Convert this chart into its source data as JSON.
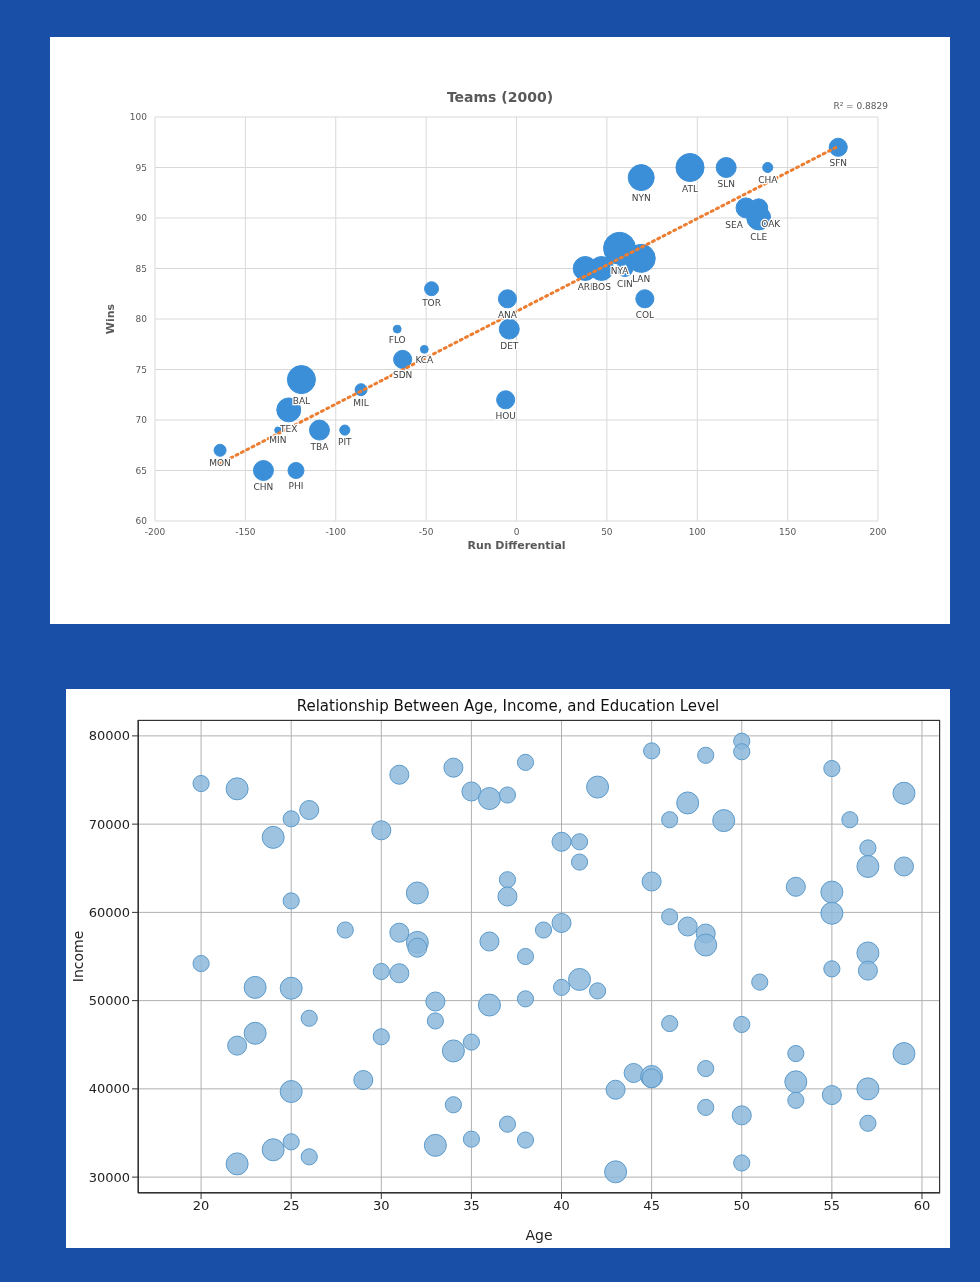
{
  "chart_data": [
    {
      "type": "bubble",
      "title": "Teams (2000)",
      "xlabel": "Run Differential",
      "ylabel": "Wins",
      "xlim": [
        -200,
        200
      ],
      "xticks": [
        -200,
        -150,
        -100,
        -50,
        0,
        50,
        100,
        150,
        200
      ],
      "ylim": [
        60,
        100
      ],
      "yticks": [
        60,
        65,
        70,
        75,
        80,
        85,
        90,
        95,
        100
      ],
      "grid": true,
      "series": [
        {
          "color": "#3a8fd8",
          "x": [
            -164,
            -140,
            -122,
            -132,
            -126,
            -119,
            -109,
            -95,
            -86,
            -63,
            -66,
            -51,
            -47,
            -5,
            -4,
            -6,
            38,
            47,
            57,
            60,
            69,
            71,
            69,
            96,
            116,
            139,
            178,
            127,
            134,
            134
          ],
          "values": [
            67,
            65,
            65,
            69,
            71,
            74,
            69,
            69,
            73,
            76,
            79,
            77,
            83,
            82,
            79,
            72,
            85,
            85,
            87,
            85,
            86,
            82,
            94,
            95,
            95,
            95,
            97,
            91,
            91,
            90
          ],
          "sizes": [
            0.14,
            0.39,
            0.25,
            0.04,
            0.56,
            0.77,
            0.39,
            0.1,
            0.14,
            0.32,
            0.06,
            0.06,
            0.19,
            0.32,
            0.39,
            0.32,
            0.56,
            0.56,
            1,
            0.25,
            0.77,
            0.32,
            0.66,
            0.77,
            0.39,
            0.1,
            0.32,
            0.39,
            0.32,
            0.56
          ]
        },
        {
          "type": "line",
          "color": "#ed7d31",
          "line_style": "dotted",
          "marker": "none",
          "x": [
            -164,
            178
          ],
          "values": [
            65.7,
            97.1
          ]
        }
      ],
      "annotations": [
        "R² = 0.8829",
        {
          "text": "MON",
          "x": -164,
          "y": 67
        },
        {
          "text": "CHN",
          "x": -140,
          "y": 65
        },
        {
          "text": "PHI",
          "x": -122,
          "y": 65
        },
        {
          "text": "MIN",
          "x": -132,
          "y": 69
        },
        {
          "text": "TEX",
          "x": -126,
          "y": 71
        },
        {
          "text": "BAL",
          "x": -119,
          "y": 74
        },
        {
          "text": "TBA",
          "x": -109,
          "y": 69
        },
        {
          "text": "PIT",
          "x": -95,
          "y": 69
        },
        {
          "text": "MIL",
          "x": -86,
          "y": 73
        },
        {
          "text": "SDN",
          "x": -63,
          "y": 76
        },
        {
          "text": "FLO",
          "x": -66,
          "y": 79
        },
        {
          "text": "KCA",
          "x": -51,
          "y": 77
        },
        {
          "text": "TOR",
          "x": -47,
          "y": 83
        },
        {
          "text": "ANA",
          "x": -5,
          "y": 82
        },
        {
          "text": "DET",
          "x": -4,
          "y": 79
        },
        {
          "text": "HOU",
          "x": -6,
          "y": 72
        },
        {
          "text": "ARI",
          "x": 38,
          "y": 85
        },
        {
          "text": "BOS",
          "x": 47,
          "y": 85
        },
        {
          "text": "NYA",
          "x": 57,
          "y": 87
        },
        {
          "text": "CIN",
          "x": 60,
          "y": 85
        },
        {
          "text": "LAN",
          "x": 69,
          "y": 86
        },
        {
          "text": "COL",
          "x": 71,
          "y": 82
        },
        {
          "text": "NYN",
          "x": 69,
          "y": 94
        },
        {
          "text": "ATL",
          "x": 96,
          "y": 95
        },
        {
          "text": "SLN",
          "x": 116,
          "y": 95
        },
        {
          "text": "CHA",
          "x": 139,
          "y": 95
        },
        {
          "text": "SFN",
          "x": 178,
          "y": 97
        },
        {
          "text": "SEA",
          "x": 127,
          "y": 91
        },
        {
          "text": "OAK",
          "x": 134,
          "y": 91
        },
        {
          "text": "CLE",
          "x": 134,
          "y": 90
        }
      ]
    },
    {
      "type": "bubble",
      "title": "Relationship Between Age, Income, and Education Level",
      "xlabel": "Age",
      "ylabel": "Income",
      "xlim": [
        16.5,
        61
      ],
      "xticks": [
        20,
        25,
        30,
        35,
        40,
        45,
        50,
        55,
        60
      ],
      "ylim": [
        28200,
        81800
      ],
      "yticks": [
        30000,
        40000,
        50000,
        60000,
        70000,
        80000
      ],
      "grid": true,
      "series": [
        {
          "color": "#8cb9dc",
          "x": [
            20,
            22,
            26,
            25,
            24,
            30,
            31,
            34,
            35,
            36,
            37,
            37,
            37,
            32,
            25,
            28,
            31,
            32,
            32,
            36,
            20,
            30,
            31,
            23,
            25,
            33,
            36,
            26,
            33,
            23,
            22,
            30,
            34,
            35,
            29,
            25,
            34,
            37,
            35,
            25,
            24,
            26,
            22,
            33,
            38,
            38,
            38,
            38,
            42,
            45,
            48,
            50,
            50,
            55,
            59,
            47,
            46,
            49,
            56,
            40,
            41,
            41,
            57,
            57,
            59,
            45,
            53,
            55,
            55,
            40,
            39,
            46,
            47,
            48,
            48,
            57,
            55,
            57,
            51,
            40,
            41,
            42,
            46,
            50,
            53,
            59,
            44,
            45,
            45,
            48,
            53,
            43,
            55,
            57,
            48,
            53,
            50,
            57,
            43,
            50
          ],
          "values": [
            74600,
            74000,
            71600,
            70600,
            68500,
            69300,
            75600,
            76400,
            73700,
            72900,
            73300,
            63700,
            61800,
            62200,
            61300,
            58000,
            57700,
            56600,
            56000,
            56700,
            54200,
            53300,
            53100,
            51500,
            51400,
            49900,
            49500,
            48000,
            47700,
            46300,
            44900,
            45900,
            44300,
            45300,
            41000,
            39700,
            38200,
            36000,
            34300,
            34000,
            33100,
            32300,
            31500,
            33600,
            77000,
            55000,
            50200,
            34200,
            74200,
            78300,
            77800,
            79400,
            78200,
            76300,
            73500,
            72400,
            70500,
            70400,
            70500,
            68000,
            68000,
            65700,
            67300,
            65200,
            65200,
            63500,
            62900,
            62300,
            59900,
            58800,
            58000,
            59500,
            58400,
            57600,
            56300,
            55400,
            53600,
            53400,
            52100,
            51500,
            52400,
            51100,
            47400,
            47300,
            44000,
            44000,
            41800,
            41400,
            41200,
            42300,
            40800,
            39900,
            39300,
            40000,
            37900,
            38700,
            37000,
            36100,
            30600,
            31600
          ],
          "sizes": [
            0.54,
            1,
            0.75,
            0.54,
            1,
            0.75,
            0.75,
            0.75,
            0.75,
            1,
            0.54,
            0.54,
            0.75,
            1,
            0.54,
            0.54,
            0.75,
            1,
            0.75,
            0.75,
            0.54,
            0.54,
            0.75,
            1,
            1,
            0.75,
            1,
            0.54,
            0.54,
            1,
            0.75,
            0.54,
            1,
            0.54,
            0.75,
            1,
            0.54,
            0.54,
            0.54,
            0.54,
            1,
            0.54,
            1,
            1,
            0.54,
            0.54,
            0.54,
            0.54,
            1,
            0.54,
            0.54,
            0.54,
            0.54,
            0.54,
            1,
            1,
            0.54,
            1,
            0.54,
            0.75,
            0.54,
            0.54,
            0.54,
            1,
            0.75,
            0.75,
            0.75,
            1,
            1,
            0.75,
            0.54,
            0.54,
            0.75,
            0.75,
            1,
            1,
            0.54,
            0.75,
            0.54,
            0.54,
            1,
            0.54,
            0.54,
            0.54,
            0.54,
            1,
            0.75,
            1,
            0.75,
            0.54,
            1,
            0.75,
            0.75,
            1,
            0.54,
            0.54,
            0.75,
            0.54,
            1,
            0.54
          ]
        }
      ]
    }
  ]
}
